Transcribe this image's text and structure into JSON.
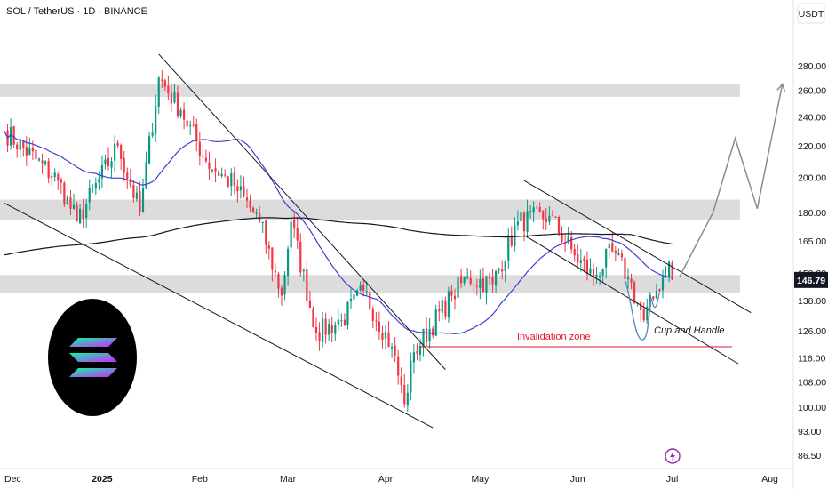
{
  "header": {
    "symbol_title": "SOL / TetherUS · 1D · BINANCE"
  },
  "axis": {
    "currency": "USDT"
  },
  "price_badge": {
    "value": "146.79",
    "bg_color": "#131722"
  },
  "colors": {
    "up": "#089981",
    "down": "#f23645",
    "ma_fast": "#3f3fd6",
    "ma_slow": "#131722",
    "zone": "#dcdcdc",
    "invalidation": "#e0192b",
    "projection": "#8c8c8c"
  },
  "annotations": {
    "invalidation_label": "Invalidation zone",
    "pattern_label": "Cup and Handle"
  },
  "logo": {
    "name": "solana-logo",
    "bg": "#000000"
  },
  "chart_data": {
    "type": "candlestick",
    "title": "SOL / TetherUS · 1D · BINANCE",
    "y_scale": "log",
    "ylim": [
      85,
      300
    ],
    "y_ticks": [
      86.5,
      93.0,
      100.0,
      108.0,
      116.0,
      126.0,
      138.0,
      150.0,
      165.0,
      180.0,
      200.0,
      220.0,
      240.0,
      260.0,
      280.0
    ],
    "y_tick_labels": [
      "86.50",
      "93.00",
      "100.00",
      "108.00",
      "116.00",
      "126.00",
      "138.00",
      "150.00",
      "165.00",
      "180.00",
      "200.00",
      "220.00",
      "240.00",
      "260.00",
      "280.00"
    ],
    "x_labels": [
      "Dec",
      "2025",
      "Feb",
      "Mar",
      "Apr",
      "May",
      "Jun",
      "Jul",
      "Aug"
    ],
    "x_label_dates": [
      "2024-12-01",
      "2025-01-01",
      "2025-02-01",
      "2025-03-01",
      "2025-04-01",
      "2025-05-01",
      "2025-06-01",
      "2025-07-01",
      "2025-08-01"
    ],
    "xlim": [
      "2024-12-01",
      "2025-08-20"
    ],
    "last_price": 146.79,
    "zones": [
      {
        "low": 255,
        "high": 265
      },
      {
        "low": 176,
        "high": 187
      },
      {
        "low": 141,
        "high": 149
      }
    ],
    "key_points": [
      {
        "date": "2024-12-01",
        "price": 230,
        "name": "start"
      },
      {
        "date": "2024-12-18",
        "price": 198
      },
      {
        "date": "2024-12-24",
        "price": 175
      },
      {
        "date": "2025-01-06",
        "price": 220
      },
      {
        "date": "2025-01-13",
        "price": 180
      },
      {
        "date": "2025-01-19",
        "price": 270
      },
      {
        "date": "2025-01-26",
        "price": 245
      },
      {
        "date": "2025-02-03",
        "price": 210
      },
      {
        "date": "2025-02-12",
        "price": 195
      },
      {
        "date": "2025-02-20",
        "price": 175
      },
      {
        "date": "2025-02-27",
        "price": 140
      },
      {
        "date": "2025-03-02",
        "price": 175
      },
      {
        "date": "2025-03-10",
        "price": 125
      },
      {
        "date": "2025-03-18",
        "price": 130
      },
      {
        "date": "2025-03-25",
        "price": 142
      },
      {
        "date": "2025-04-03",
        "price": 120
      },
      {
        "date": "2025-04-07",
        "price": 101
      },
      {
        "date": "2025-04-10",
        "price": 118
      },
      {
        "date": "2025-04-22",
        "price": 140
      },
      {
        "date": "2025-04-27",
        "price": 148
      },
      {
        "date": "2025-05-05",
        "price": 145
      },
      {
        "date": "2025-05-13",
        "price": 175
      },
      {
        "date": "2025-05-23",
        "price": 178
      },
      {
        "date": "2025-05-31",
        "price": 158
      },
      {
        "date": "2025-06-06",
        "price": 148
      },
      {
        "date": "2025-06-12",
        "price": 160
      },
      {
        "date": "2025-06-17",
        "price": 148
      },
      {
        "date": "2025-06-22",
        "price": 130
      },
      {
        "date": "2025-06-26",
        "price": 142
      },
      {
        "date": "2025-06-30",
        "price": 155
      },
      {
        "date": "2025-07-01",
        "price": 146.79,
        "name": "last"
      }
    ],
    "ma_fast_label": "",
    "ma_slow_label": "",
    "trendlines": [
      {
        "name": "wedge-upper",
        "from": {
          "date": "2025-01-19",
          "price": 290
        },
        "to": {
          "date": "2025-04-20",
          "price": 112
        }
      },
      {
        "name": "wedge-lower",
        "from": {
          "date": "2024-12-01",
          "price": 185
        },
        "to": {
          "date": "2025-04-16",
          "price": 94
        }
      },
      {
        "name": "channel-upper",
        "from": {
          "date": "2025-05-15",
          "price": 198
        },
        "to": {
          "date": "2025-07-26",
          "price": 133
        }
      },
      {
        "name": "channel-lower",
        "from": {
          "date": "2025-05-15",
          "price": 168
        },
        "to": {
          "date": "2025-07-22",
          "price": 114
        }
      }
    ],
    "invalidation_level": 120,
    "projection_path": [
      {
        "date": "2025-07-06",
        "price": 148
      },
      {
        "date": "2025-07-14",
        "price": 180
      },
      {
        "date": "2025-07-21",
        "price": 225
      },
      {
        "date": "2025-07-28",
        "price": 182
      },
      {
        "date": "2025-08-05",
        "price": 265
      }
    ],
    "grid": false
  }
}
